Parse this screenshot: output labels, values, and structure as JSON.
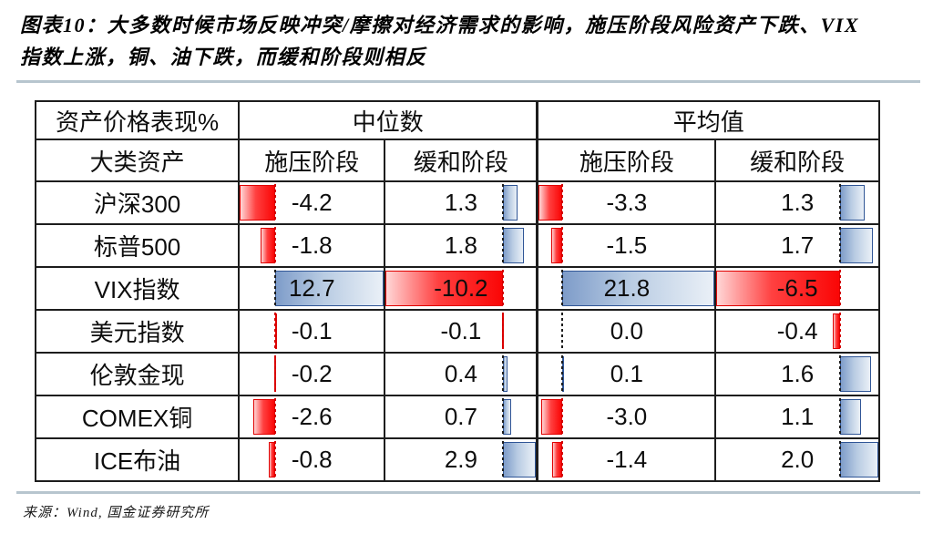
{
  "title": {
    "lines": [
      "图表10：大多数时候市场反映冲突/摩擦对经济需求的影响，施压阶段风险资产下跌、VIX",
      "指数上涨，铜、油下跌，而缓和阶段则相反"
    ]
  },
  "source": "来源：Wind, 国金证券研究所",
  "chart_data": {
    "type": "table",
    "title": "资产价格表现%",
    "corner_header": "资产价格表现%",
    "row_header": "大类资产",
    "col_groups": [
      {
        "label": "中位数",
        "subcols": [
          "施压阶段",
          "缓和阶段"
        ]
      },
      {
        "label": "平均值",
        "subcols": [
          "施压阶段",
          "缓和阶段"
        ]
      }
    ],
    "rows": [
      {
        "asset": "沪深300",
        "values": [
          -4.2,
          1.3,
          -3.3,
          1.3
        ]
      },
      {
        "asset": "标普500",
        "values": [
          -1.8,
          1.8,
          -1.5,
          1.7
        ]
      },
      {
        "asset": "VIX指数",
        "values": [
          12.7,
          -10.2,
          21.8,
          -6.5
        ]
      },
      {
        "asset": "美元指数",
        "values": [
          -0.1,
          -0.1,
          0.0,
          -0.4
        ]
      },
      {
        "asset": "伦敦金现",
        "values": [
          -0.2,
          0.4,
          0.1,
          1.6
        ]
      },
      {
        "asset": "COMEX铜",
        "values": [
          -2.6,
          0.7,
          -3.0,
          1.1
        ]
      },
      {
        "asset": "ICE布油",
        "values": [
          -0.8,
          2.9,
          -1.4,
          2.0
        ]
      }
    ],
    "databars": {
      "style": "excel-gradient-databar-with-automatic-axis",
      "value_format": "one-decimal"
    }
  },
  "colors": {
    "positive_bar_solid": "#7e9cc9",
    "positive_bar_light": "#eaf0f7",
    "positive_bar_border": "#2f5596",
    "negative_bar_solid": "#fa0606",
    "negative_bar_light": "#ffd6d6",
    "negative_bar_border": "#e00000",
    "axis_dash_positive": "#1c1c1c",
    "axis_dash_negative": "#d40000",
    "divider_rule": "#b7c5ce"
  }
}
